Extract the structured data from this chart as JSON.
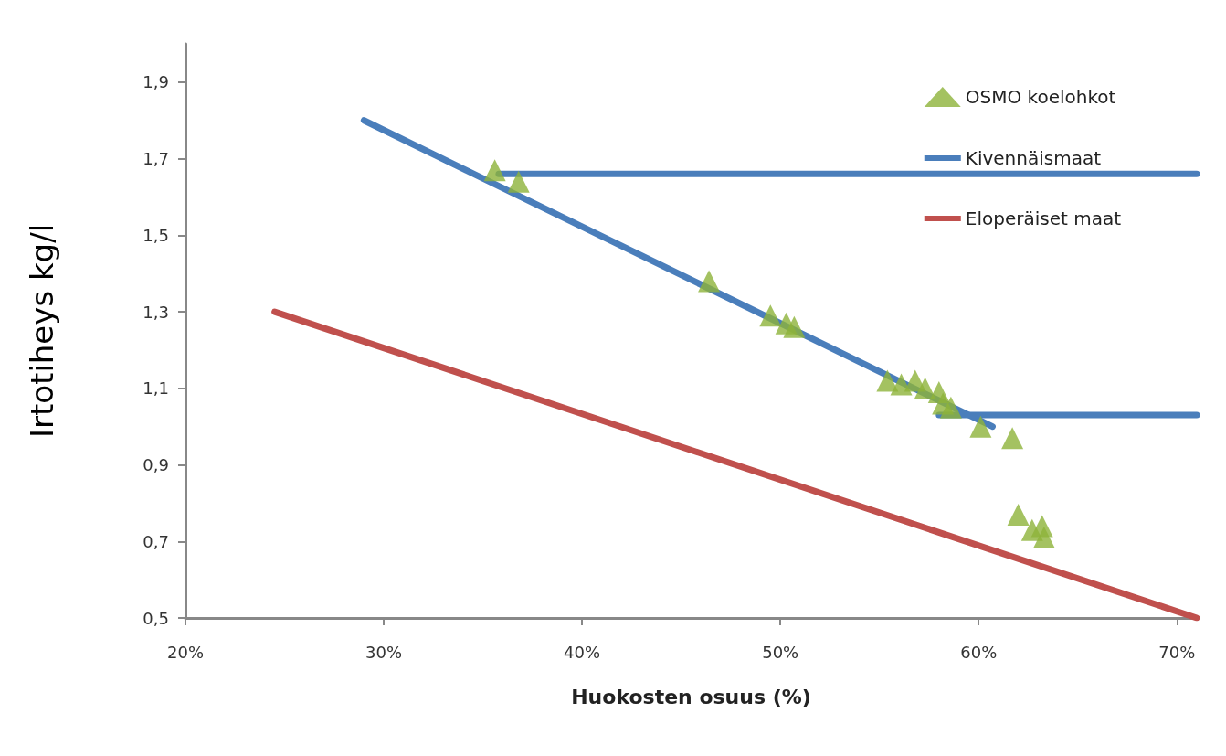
{
  "chart_data": {
    "type": "scatter",
    "xlabel": "Huokosten osuus (%)",
    "ylabel": "Irtotiheys kg/l",
    "xlim": [
      20,
      71
    ],
    "xticks": [
      {
        "value": 20,
        "label": "20%"
      },
      {
        "value": 30,
        "label": "30%"
      },
      {
        "value": 40,
        "label": "40%"
      },
      {
        "value": 50,
        "label": "50%"
      },
      {
        "value": 60,
        "label": "60%"
      },
      {
        "value": 70,
        "label": "70%"
      }
    ],
    "ylim": [
      0.5,
      2.0
    ],
    "yticks": [
      {
        "value": 0.5,
        "label": "0,5"
      },
      {
        "value": 0.7,
        "label": "0,7"
      },
      {
        "value": 0.9,
        "label": "0,9"
      },
      {
        "value": 1.1,
        "label": "1,1"
      },
      {
        "value": 1.3,
        "label": "1,3"
      },
      {
        "value": 1.5,
        "label": "1,5"
      },
      {
        "value": 1.7,
        "label": "1,7"
      },
      {
        "value": 1.9,
        "label": "1,9"
      }
    ],
    "grid": false,
    "legend": "top right",
    "series": [
      {
        "name": "OSMO koelohkot",
        "marker": "triangle",
        "color": "#8db33a",
        "x": [
          35.6,
          36.8,
          46.4,
          49.5,
          50.3,
          50.7,
          55.4,
          56.1,
          56.8,
          57.3,
          58.0,
          58.2,
          58.6,
          60.1,
          61.7,
          62.0,
          62.7,
          63.2,
          63.3
        ],
        "values": [
          1.67,
          1.64,
          1.38,
          1.29,
          1.27,
          1.26,
          1.12,
          1.11,
          1.12,
          1.1,
          1.09,
          1.06,
          1.05,
          1.0,
          0.97,
          0.77,
          0.73,
          0.74,
          0.71
        ]
      },
      {
        "name": "Kivennäismaat",
        "type": "line",
        "color": "#4a7ebb",
        "x": [
          29,
          60.7
        ],
        "values": [
          1.8,
          1.0
        ]
      },
      {
        "name": "Eloperäiset maat",
        "type": "line",
        "color": "#c0504d",
        "x": [
          24.5,
          71
        ],
        "values": [
          1.3,
          0.5
        ]
      },
      {
        "type": "line",
        "color": "#4a7ebb",
        "x": [
          35.8,
          71
        ],
        "values": [
          1.66,
          1.66
        ]
      },
      {
        "type": "line",
        "color": "#4a7ebb",
        "x": [
          58.0,
          71
        ],
        "values": [
          1.03,
          1.03
        ]
      }
    ]
  }
}
